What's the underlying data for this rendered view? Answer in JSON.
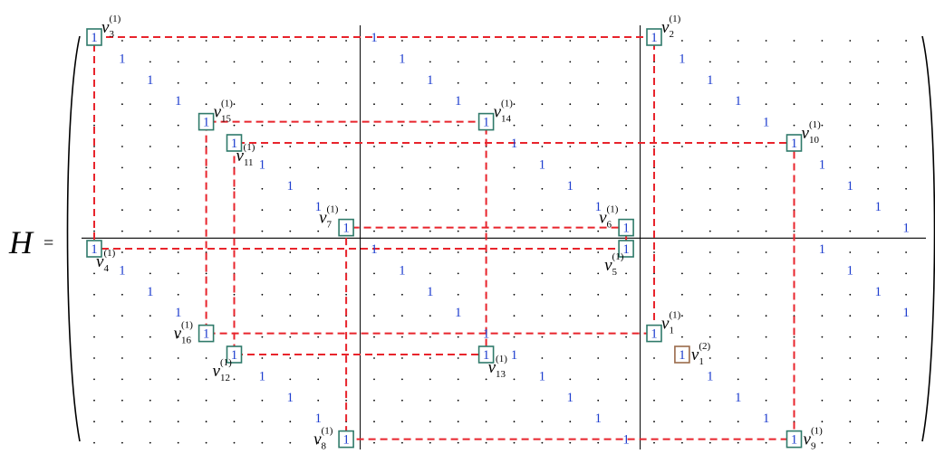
{
  "matrix_name": "H",
  "equals": "=",
  "entry_value": "1",
  "rows": 20,
  "cols": 30,
  "colors": {
    "dots": "#000000",
    "entries": "#1f3fcf",
    "box_teal": "#2f7a6a",
    "box_brown": "#9a6a4a",
    "dashed": "#e8242c",
    "separators": "#000000"
  },
  "row_blocks": 2,
  "col_blocks": 3,
  "entries": [
    [
      0,
      0
    ],
    [
      1,
      1
    ],
    [
      2,
      2
    ],
    [
      3,
      3
    ],
    [
      4,
      4
    ],
    [
      5,
      5
    ],
    [
      6,
      6
    ],
    [
      7,
      7
    ],
    [
      8,
      8
    ],
    [
      9,
      9
    ],
    [
      10,
      0
    ],
    [
      11,
      1
    ],
    [
      12,
      2
    ],
    [
      13,
      3
    ],
    [
      14,
      4
    ],
    [
      15,
      5
    ],
    [
      16,
      6
    ],
    [
      17,
      7
    ],
    [
      18,
      8
    ],
    [
      19,
      9
    ],
    [
      0,
      10
    ],
    [
      1,
      11
    ],
    [
      2,
      12
    ],
    [
      3,
      13
    ],
    [
      4,
      14
    ],
    [
      5,
      15
    ],
    [
      6,
      16
    ],
    [
      7,
      17
    ],
    [
      8,
      18
    ],
    [
      9,
      19
    ],
    [
      10,
      10
    ],
    [
      11,
      11
    ],
    [
      12,
      12
    ],
    [
      13,
      13
    ],
    [
      14,
      14
    ],
    [
      15,
      15
    ],
    [
      16,
      16
    ],
    [
      17,
      17
    ],
    [
      18,
      18
    ],
    [
      19,
      19
    ],
    [
      0,
      20
    ],
    [
      1,
      21
    ],
    [
      2,
      22
    ],
    [
      3,
      23
    ],
    [
      4,
      24
    ],
    [
      5,
      25
    ],
    [
      6,
      26
    ],
    [
      7,
      27
    ],
    [
      8,
      28
    ],
    [
      9,
      29
    ],
    [
      10,
      26
    ],
    [
      11,
      27
    ],
    [
      12,
      28
    ],
    [
      13,
      29
    ],
    [
      14,
      20
    ],
    [
      15,
      21
    ],
    [
      16,
      22
    ],
    [
      17,
      23
    ],
    [
      18,
      24
    ],
    [
      19,
      25
    ]
  ],
  "vertices": [
    {
      "id": "v1",
      "row": 14,
      "col": 20,
      "sub": "1",
      "sup": "(1)",
      "label_pos": "ne",
      "style": "teal"
    },
    {
      "id": "v2",
      "row": 0,
      "col": 20,
      "sub": "2",
      "sup": "(1)",
      "label_pos": "ne",
      "style": "teal"
    },
    {
      "id": "v3",
      "row": 0,
      "col": 0,
      "sub": "3",
      "sup": "(1)",
      "label_pos": "ne",
      "style": "teal"
    },
    {
      "id": "v4",
      "row": 10,
      "col": 0,
      "sub": "4",
      "sup": "(1)",
      "label_pos": "se",
      "style": "teal"
    },
    {
      "id": "v5",
      "row": 10,
      "col": 19,
      "sub": "5",
      "sup": "(1)",
      "label_pos": "sw",
      "style": "teal"
    },
    {
      "id": "v6",
      "row": 9,
      "col": 19,
      "sub": "6",
      "sup": "(1)",
      "label_pos": "nw",
      "style": "teal"
    },
    {
      "id": "v7",
      "row": 9,
      "col": 9,
      "sub": "7",
      "sup": "(1)",
      "label_pos": "nw",
      "style": "teal"
    },
    {
      "id": "v8",
      "row": 19,
      "col": 9,
      "sub": "8",
      "sup": "(1)",
      "label_pos": "w",
      "style": "teal"
    },
    {
      "id": "v9",
      "row": 19,
      "col": 25,
      "sub": "9",
      "sup": "(1)",
      "label_pos": "e",
      "style": "teal"
    },
    {
      "id": "v10",
      "row": 5,
      "col": 25,
      "sub": "10",
      "sup": "(1)",
      "label_pos": "ne",
      "style": "teal"
    },
    {
      "id": "v11",
      "row": 5,
      "col": 5,
      "sub": "11",
      "sup": "(1)",
      "label_pos": "se",
      "style": "teal"
    },
    {
      "id": "v12",
      "row": 15,
      "col": 5,
      "sub": "12",
      "sup": "(1)",
      "label_pos": "sw",
      "style": "teal"
    },
    {
      "id": "v13",
      "row": 15,
      "col": 14,
      "sub": "13",
      "sup": "(1)",
      "label_pos": "se",
      "style": "teal"
    },
    {
      "id": "v14",
      "row": 4,
      "col": 14,
      "sub": "14",
      "sup": "(1)",
      "label_pos": "ne",
      "style": "teal"
    },
    {
      "id": "v15",
      "row": 4,
      "col": 4,
      "sub": "15",
      "sup": "(1)",
      "label_pos": "ne",
      "style": "teal"
    },
    {
      "id": "v16",
      "row": 14,
      "col": 4,
      "sub": "16",
      "sup": "(1)",
      "label_pos": "w",
      "style": "teal"
    },
    {
      "id": "v1b",
      "row": 15,
      "col": 21,
      "sub": "1",
      "sup": "(2)",
      "label_pos": "e",
      "style": "brown"
    }
  ],
  "cycles": [
    [
      "v3",
      "v2",
      "v1",
      "v16",
      "v15",
      "v14",
      "v13",
      "v12",
      "v11",
      "v10",
      "v9",
      "v8",
      "v7",
      "v6",
      "v5",
      "v4",
      "v3"
    ]
  ]
}
